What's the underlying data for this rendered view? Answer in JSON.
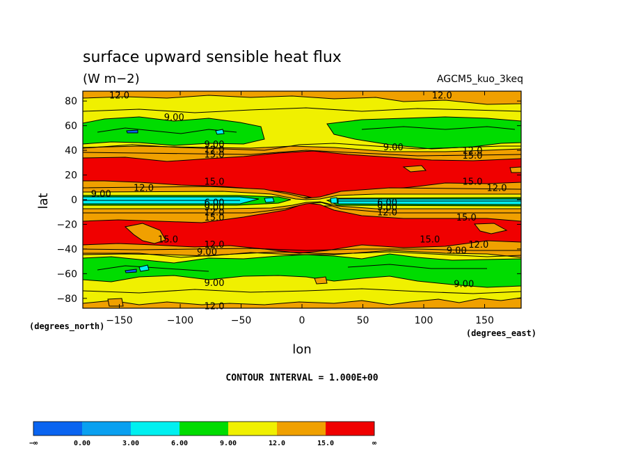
{
  "chart_data": {
    "type": "heatmap",
    "subtype": "filled contour map",
    "title": "surface upward sensible heat flux",
    "subtitle": "(W m−2)",
    "dataset": "AGCM5_kuo_3keq",
    "xlabel": "lon",
    "ylabel": "lat",
    "x_units": "(degrees_east)",
    "y_units": "(degrees_north)",
    "xlim": [
      -180,
      180
    ],
    "ylim": [
      -88,
      88
    ],
    "x_ticks": [
      -150,
      -100,
      -50,
      0,
      50,
      100,
      150
    ],
    "y_ticks": [
      -80,
      -60,
      -40,
      -20,
      0,
      20,
      40,
      60,
      80
    ],
    "contour_interval_label": "CONTOUR INTERVAL = 1.000E+00",
    "colorbar": {
      "levels": [
        "−∞",
        "0.00",
        "3.00",
        "6.00",
        "9.00",
        "12.0",
        "15.0",
        "∞"
      ],
      "colors": [
        "#0a64f0",
        "#0aa0f0",
        "#00f0f0",
        "#00dc00",
        "#f0f000",
        "#f0a000",
        "#f00000"
      ]
    },
    "contour_labels": [
      {
        "text": "12.0",
        "lon": -150,
        "lat": 85
      },
      {
        "text": "12.0",
        "lon": 115,
        "lat": 85
      },
      {
        "text": "9.00",
        "lon": -105,
        "lat": 67
      },
      {
        "text": "9.00",
        "lon": -72,
        "lat": 45
      },
      {
        "text": "12.0",
        "lon": -72,
        "lat": 41
      },
      {
        "text": "15.0",
        "lon": -72,
        "lat": 37
      },
      {
        "text": "9.00",
        "lon": 75,
        "lat": 43
      },
      {
        "text": "12.0",
        "lon": 140,
        "lat": 40
      },
      {
        "text": "15.0",
        "lon": 140,
        "lat": 36
      },
      {
        "text": "15.0",
        "lon": -72,
        "lat": 15
      },
      {
        "text": "15.0",
        "lon": 140,
        "lat": 15
      },
      {
        "text": "12.0",
        "lon": 160,
        "lat": 10
      },
      {
        "text": "12.0",
        "lon": -130,
        "lat": 10
      },
      {
        "text": "9.00",
        "lon": -165,
        "lat": 5
      },
      {
        "text": "6.00",
        "lon": -72,
        "lat": -2
      },
      {
        "text": "9.00",
        "lon": -72,
        "lat": -6
      },
      {
        "text": "12.0",
        "lon": -72,
        "lat": -10
      },
      {
        "text": "15.0",
        "lon": -72,
        "lat": -14
      },
      {
        "text": "6.00",
        "lon": 70,
        "lat": -2
      },
      {
        "text": "9.00",
        "lon": 70,
        "lat": -6
      },
      {
        "text": "12.0",
        "lon": 70,
        "lat": -10
      },
      {
        "text": "15.0",
        "lon": 135,
        "lat": -14
      },
      {
        "text": "15.0",
        "lon": -110,
        "lat": -32
      },
      {
        "text": "12.0",
        "lon": -72,
        "lat": -36
      },
      {
        "text": "9.00",
        "lon": -78,
        "lat": -42
      },
      {
        "text": "15.0",
        "lon": 105,
        "lat": -32
      },
      {
        "text": "12.0",
        "lon": 145,
        "lat": -36
      },
      {
        "text": "9.00",
        "lon": 127,
        "lat": -41
      },
      {
        "text": "9.00",
        "lon": -72,
        "lat": -67
      },
      {
        "text": "9.00",
        "lon": 133,
        "lat": -68
      },
      {
        "text": "12.0",
        "lon": -72,
        "lat": -86
      }
    ]
  }
}
